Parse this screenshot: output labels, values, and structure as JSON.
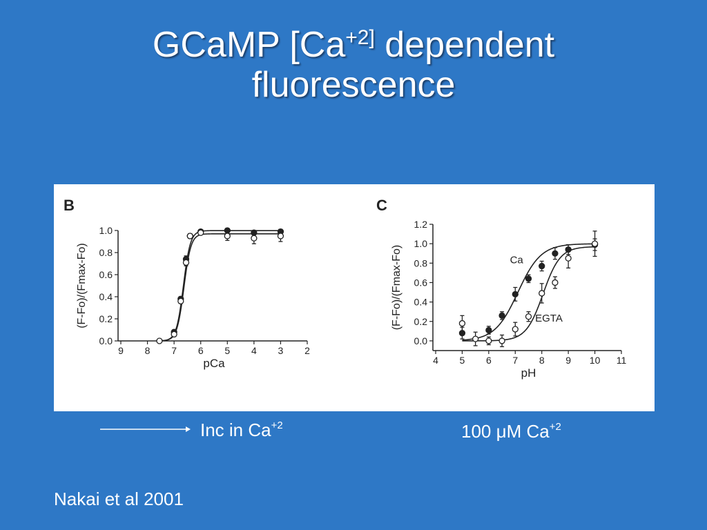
{
  "slide": {
    "title_line1_pre": "GCaMP [Ca",
    "title_line1_sup": "+2]",
    "title_line1_post": " dependent",
    "title_line2": "fluorescence",
    "caption_left_text": "Inc in Ca",
    "caption_left_sup": "+2",
    "caption_right_text": "100 μM Ca",
    "caption_right_sup": "+2",
    "reference": "Nakai et al 2001"
  },
  "chart_data": [
    {
      "panel": "B",
      "type": "scatter",
      "ylabel": "(F-Fo)/(Fmax-Fo)",
      "xlabel": "pCa",
      "xlim": [
        9,
        2
      ],
      "ylim": [
        0,
        1.0
      ],
      "xticks": [
        9,
        8,
        7,
        6,
        5,
        4,
        3,
        2
      ],
      "yticks": [
        "0.0",
        "0.2",
        "0.4",
        "0.6",
        "0.8",
        "1.0"
      ],
      "series": [
        {
          "marker": "filled",
          "x": [
            7.0,
            6.75,
            6.55,
            6.4,
            6.0,
            5.0,
            4.0,
            3.0
          ],
          "y": [
            0.08,
            0.38,
            0.74,
            0.95,
            0.99,
            1.0,
            0.98,
            0.99
          ],
          "err": [
            0.02,
            0.02,
            0.03,
            0.02,
            0.01,
            0.02,
            0.02,
            0.02
          ]
        },
        {
          "marker": "open",
          "x": [
            7.55,
            7.0,
            6.75,
            6.55,
            6.4,
            6.0,
            5.0,
            4.0,
            3.0
          ],
          "y": [
            0.0,
            0.06,
            0.36,
            0.71,
            0.95,
            0.98,
            0.95,
            0.93,
            0.95
          ],
          "err": [
            0,
            0.01,
            0.02,
            0.03,
            0.02,
            0.01,
            0.04,
            0.05,
            0.05
          ]
        }
      ],
      "fits": [
        {
          "pKd": 6.65,
          "hill": 3.3,
          "top": 0.999
        },
        {
          "pKd": 6.63,
          "hill": 3.3,
          "top": 0.97
        }
      ]
    },
    {
      "panel": "C",
      "type": "scatter",
      "ylabel": "(F-Fo)/(Fmax-Fo)",
      "xlabel": "pH",
      "xlim": [
        4,
        11
      ],
      "ylim": [
        -0.1,
        1.2
      ],
      "xticks": [
        4,
        5,
        6,
        7,
        8,
        9,
        10,
        11
      ],
      "yticks": [
        "0.0",
        "0.2",
        "0.4",
        "0.6",
        "0.8",
        "1.0",
        "1.2"
      ],
      "annotations": [
        "Ca",
        "EGTA"
      ],
      "series": [
        {
          "name": "Ca",
          "marker": "filled",
          "x": [
            5.0,
            6.0,
            6.5,
            7.0,
            7.5,
            8.0,
            8.5,
            9.0,
            10.0
          ],
          "y": [
            0.08,
            0.11,
            0.26,
            0.48,
            0.64,
            0.77,
            0.9,
            0.94,
            0.99
          ],
          "err": [
            0.06,
            0.04,
            0.04,
            0.07,
            0.04,
            0.05,
            0.06,
            0.05,
            0.06
          ]
        },
        {
          "name": "EGTA",
          "marker": "open",
          "x": [
            5.0,
            5.5,
            6.0,
            6.5,
            7.0,
            7.5,
            8.0,
            8.5,
            9.0,
            10.0
          ],
          "y": [
            0.18,
            0.02,
            0.0,
            0.0,
            0.12,
            0.25,
            0.49,
            0.6,
            0.85,
            1.0
          ],
          "err": [
            0.08,
            0.07,
            0.04,
            0.06,
            0.07,
            0.05,
            0.1,
            0.06,
            0.1,
            0.13
          ]
        }
      ],
      "fits": [
        {
          "pKa": 7.1,
          "slope": 1.0,
          "top": 1.0
        },
        {
          "pKa": 8.05,
          "slope": 1.35,
          "top": 0.97
        }
      ]
    }
  ]
}
